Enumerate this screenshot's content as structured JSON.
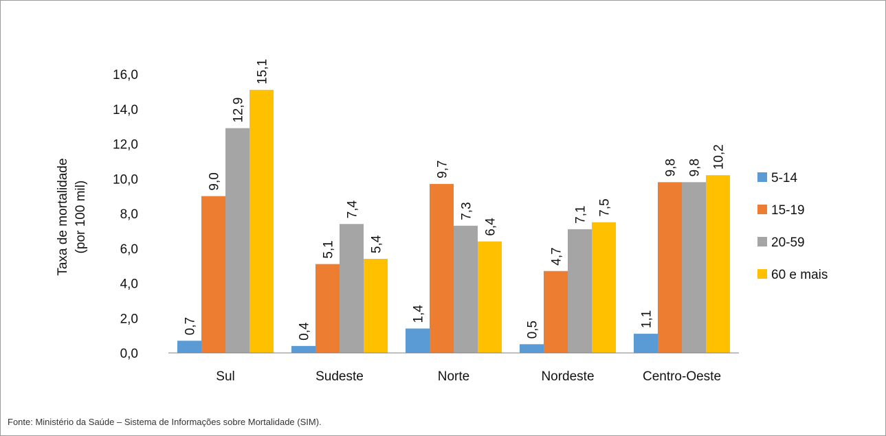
{
  "chart_data": {
    "type": "bar",
    "title": "",
    "categories": [
      "Sul",
      "Sudeste",
      "Norte",
      "Nordeste",
      "Centro-Oeste"
    ],
    "series": [
      {
        "name": "5-14",
        "color": "#5B9BD5",
        "values": [
          0.7,
          0.4,
          1.4,
          0.5,
          1.1
        ],
        "labels": [
          "0,7",
          "0,4",
          "1,4",
          "0,5",
          "1,1"
        ]
      },
      {
        "name": "15-19",
        "color": "#ED7D31",
        "values": [
          9.0,
          5.1,
          9.7,
          4.7,
          9.8
        ],
        "labels": [
          "9,0",
          "5,1",
          "9,7",
          "4,7",
          "9,8"
        ]
      },
      {
        "name": "20-59",
        "color": "#A5A5A5",
        "values": [
          12.9,
          7.4,
          7.3,
          7.1,
          9.8
        ],
        "labels": [
          "12,9",
          "7,4",
          "7,3",
          "7,1",
          "9,8"
        ]
      },
      {
        "name": "60 e mais",
        "color": "#FFC000",
        "values": [
          15.1,
          5.4,
          6.4,
          7.5,
          10.2
        ],
        "labels": [
          "15,1",
          "5,4",
          "6,4",
          "7,5",
          "10,2"
        ]
      }
    ],
    "ylabel_line1": "Taxa de mortalidade",
    "ylabel_line2": "(por 100 mil)",
    "ylim": [
      0,
      16
    ],
    "yticks": [
      0,
      2,
      4,
      6,
      8,
      10,
      12,
      14,
      16
    ],
    "ytick_labels": [
      "0,0",
      "2,0",
      "4,0",
      "6,0",
      "8,0",
      "10,0",
      "12,0",
      "14,0",
      "16,0"
    ],
    "legend_position": "right",
    "grid": false
  },
  "source_note": "Fonte: Ministério da Saúde – Sistema de Informações sobre Mortalidade (SIM)."
}
